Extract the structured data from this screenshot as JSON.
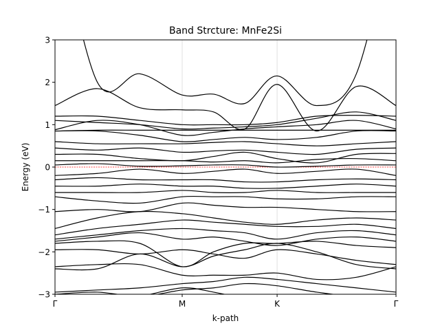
{
  "chart_data": {
    "type": "line",
    "title": "Band Strcture: MnFe2Si",
    "xlabel": "k-path",
    "ylabel": "Energy (eV)",
    "xlim": [
      0,
      3.7
    ],
    "ylim": [
      -3,
      3
    ],
    "xticks": [
      {
        "label": "Γ",
        "value": 0
      },
      {
        "label": "M",
        "value": 1.38
      },
      {
        "label": "K",
        "value": 2.41
      },
      {
        "label": "Γ",
        "value": 3.7
      }
    ],
    "yticks": [
      {
        "label": "−3",
        "value": -3
      },
      {
        "label": "−2",
        "value": -2
      },
      {
        "label": "−1",
        "value": -1
      },
      {
        "label": "0",
        "value": 0
      },
      {
        "label": "1",
        "value": 1
      },
      {
        "label": "2",
        "value": 2
      },
      {
        "label": "3",
        "value": 3
      }
    ],
    "fermi_level": 0,
    "fermi_color": "#ff0000",
    "band_color": "#000000",
    "grid_color": "#d9d9d9",
    "vertical_grid": true,
    "x": [
      0,
      0.46,
      0.92,
      1.38,
      1.72,
      2.06,
      2.41,
      2.84,
      3.27,
      3.7
    ],
    "bands": [
      [
        -3.25,
        -3.15,
        -3.05,
        -2.85,
        -2.95,
        -3.1,
        -3.2,
        -3.05,
        -3.2,
        -3.25
      ],
      [
        -3.0,
        -2.95,
        -3.05,
        -2.9,
        -2.85,
        -2.75,
        -2.8,
        -2.95,
        -3.05,
        -3.0
      ],
      [
        -2.95,
        -2.9,
        -2.85,
        -2.75,
        -2.7,
        -2.6,
        -2.65,
        -2.75,
        -2.85,
        -2.95
      ],
      [
        -2.4,
        -2.4,
        -2.05,
        -2.35,
        -2.1,
        -1.95,
        -1.8,
        -2.0,
        -2.3,
        -2.4
      ],
      [
        -2.35,
        -2.3,
        -2.3,
        -2.55,
        -2.55,
        -2.55,
        -2.5,
        -2.65,
        -2.6,
        -2.35
      ],
      [
        -1.95,
        -1.95,
        -2.05,
        -1.95,
        -2.05,
        -2.15,
        -1.95,
        -2.05,
        -2.2,
        -2.3
      ],
      [
        -1.8,
        -1.75,
        -1.8,
        -2.35,
        -2.0,
        -1.8,
        -1.8,
        -1.75,
        -1.85,
        -1.9
      ],
      [
        -1.75,
        -1.65,
        -1.55,
        -1.7,
        -1.65,
        -1.75,
        -1.85,
        -1.7,
        -1.65,
        -1.75
      ],
      [
        -1.7,
        -1.6,
        -1.5,
        -1.45,
        -1.5,
        -1.55,
        -1.7,
        -1.55,
        -1.5,
        -1.6
      ],
      [
        -1.6,
        -1.45,
        -1.35,
        -1.25,
        -1.3,
        -1.35,
        -1.4,
        -1.4,
        -1.35,
        -1.45
      ],
      [
        -1.45,
        -1.2,
        -1.05,
        -1.1,
        -1.2,
        -1.3,
        -1.35,
        -1.25,
        -1.2,
        -1.25
      ],
      [
        -1.05,
        -1.0,
        -1.05,
        -0.85,
        -0.9,
        -0.95,
        -0.95,
        -1.0,
        -1.05,
        -1.05
      ],
      [
        -0.7,
        -0.8,
        -0.85,
        -0.7,
        -0.7,
        -0.7,
        -0.75,
        -0.75,
        -0.7,
        -0.7
      ],
      [
        -0.6,
        -0.6,
        -0.6,
        -0.55,
        -0.6,
        -0.6,
        -0.55,
        -0.6,
        -0.6,
        -0.6
      ],
      [
        -0.45,
        -0.45,
        -0.4,
        -0.45,
        -0.45,
        -0.5,
        -0.5,
        -0.45,
        -0.4,
        -0.45
      ],
      [
        -0.3,
        -0.25,
        -0.3,
        -0.3,
        -0.3,
        -0.35,
        -0.35,
        -0.3,
        -0.28,
        -0.3
      ],
      [
        -0.2,
        -0.15,
        -0.05,
        -0.15,
        -0.1,
        -0.05,
        -0.15,
        -0.1,
        -0.05,
        -0.2
      ],
      [
        0.05,
        0.08,
        0.02,
        0.03,
        0.05,
        0.05,
        0.0,
        0.02,
        0.05,
        0.05
      ],
      [
        0.15,
        0.15,
        0.15,
        0.15,
        0.12,
        0.15,
        0.1,
        0.18,
        0.2,
        0.15
      ],
      [
        0.3,
        0.3,
        0.2,
        0.15,
        0.25,
        0.35,
        0.2,
        0.1,
        0.3,
        0.32
      ],
      [
        0.45,
        0.4,
        0.45,
        0.35,
        0.38,
        0.4,
        0.35,
        0.3,
        0.42,
        0.45
      ],
      [
        0.6,
        0.55,
        0.55,
        0.55,
        0.58,
        0.6,
        0.55,
        0.5,
        0.55,
        0.6
      ],
      [
        0.85,
        0.85,
        0.75,
        0.6,
        0.65,
        0.7,
        0.65,
        0.7,
        0.85,
        0.85
      ],
      [
        0.85,
        0.87,
        0.87,
        0.87,
        0.87,
        0.87,
        0.87,
        0.87,
        0.87,
        0.87
      ],
      [
        0.88,
        1.1,
        1.0,
        0.75,
        0.82,
        0.9,
        0.95,
        1.0,
        1.1,
        0.9
      ],
      [
        1.1,
        1.05,
        1.0,
        0.9,
        0.92,
        0.95,
        1.0,
        1.15,
        1.3,
        1.1
      ],
      [
        1.2,
        1.2,
        1.1,
        1.0,
        1.0,
        1.0,
        1.05,
        1.2,
        1.22,
        1.2
      ],
      [
        1.45,
        1.85,
        1.4,
        1.35,
        1.3,
        0.9,
        1.95,
        0.85,
        1.9,
        1.45
      ],
      [
        6.0,
        2.0,
        2.2,
        1.7,
        1.72,
        1.5,
        2.15,
        1.45,
        2.2,
        6.0
      ]
    ]
  }
}
